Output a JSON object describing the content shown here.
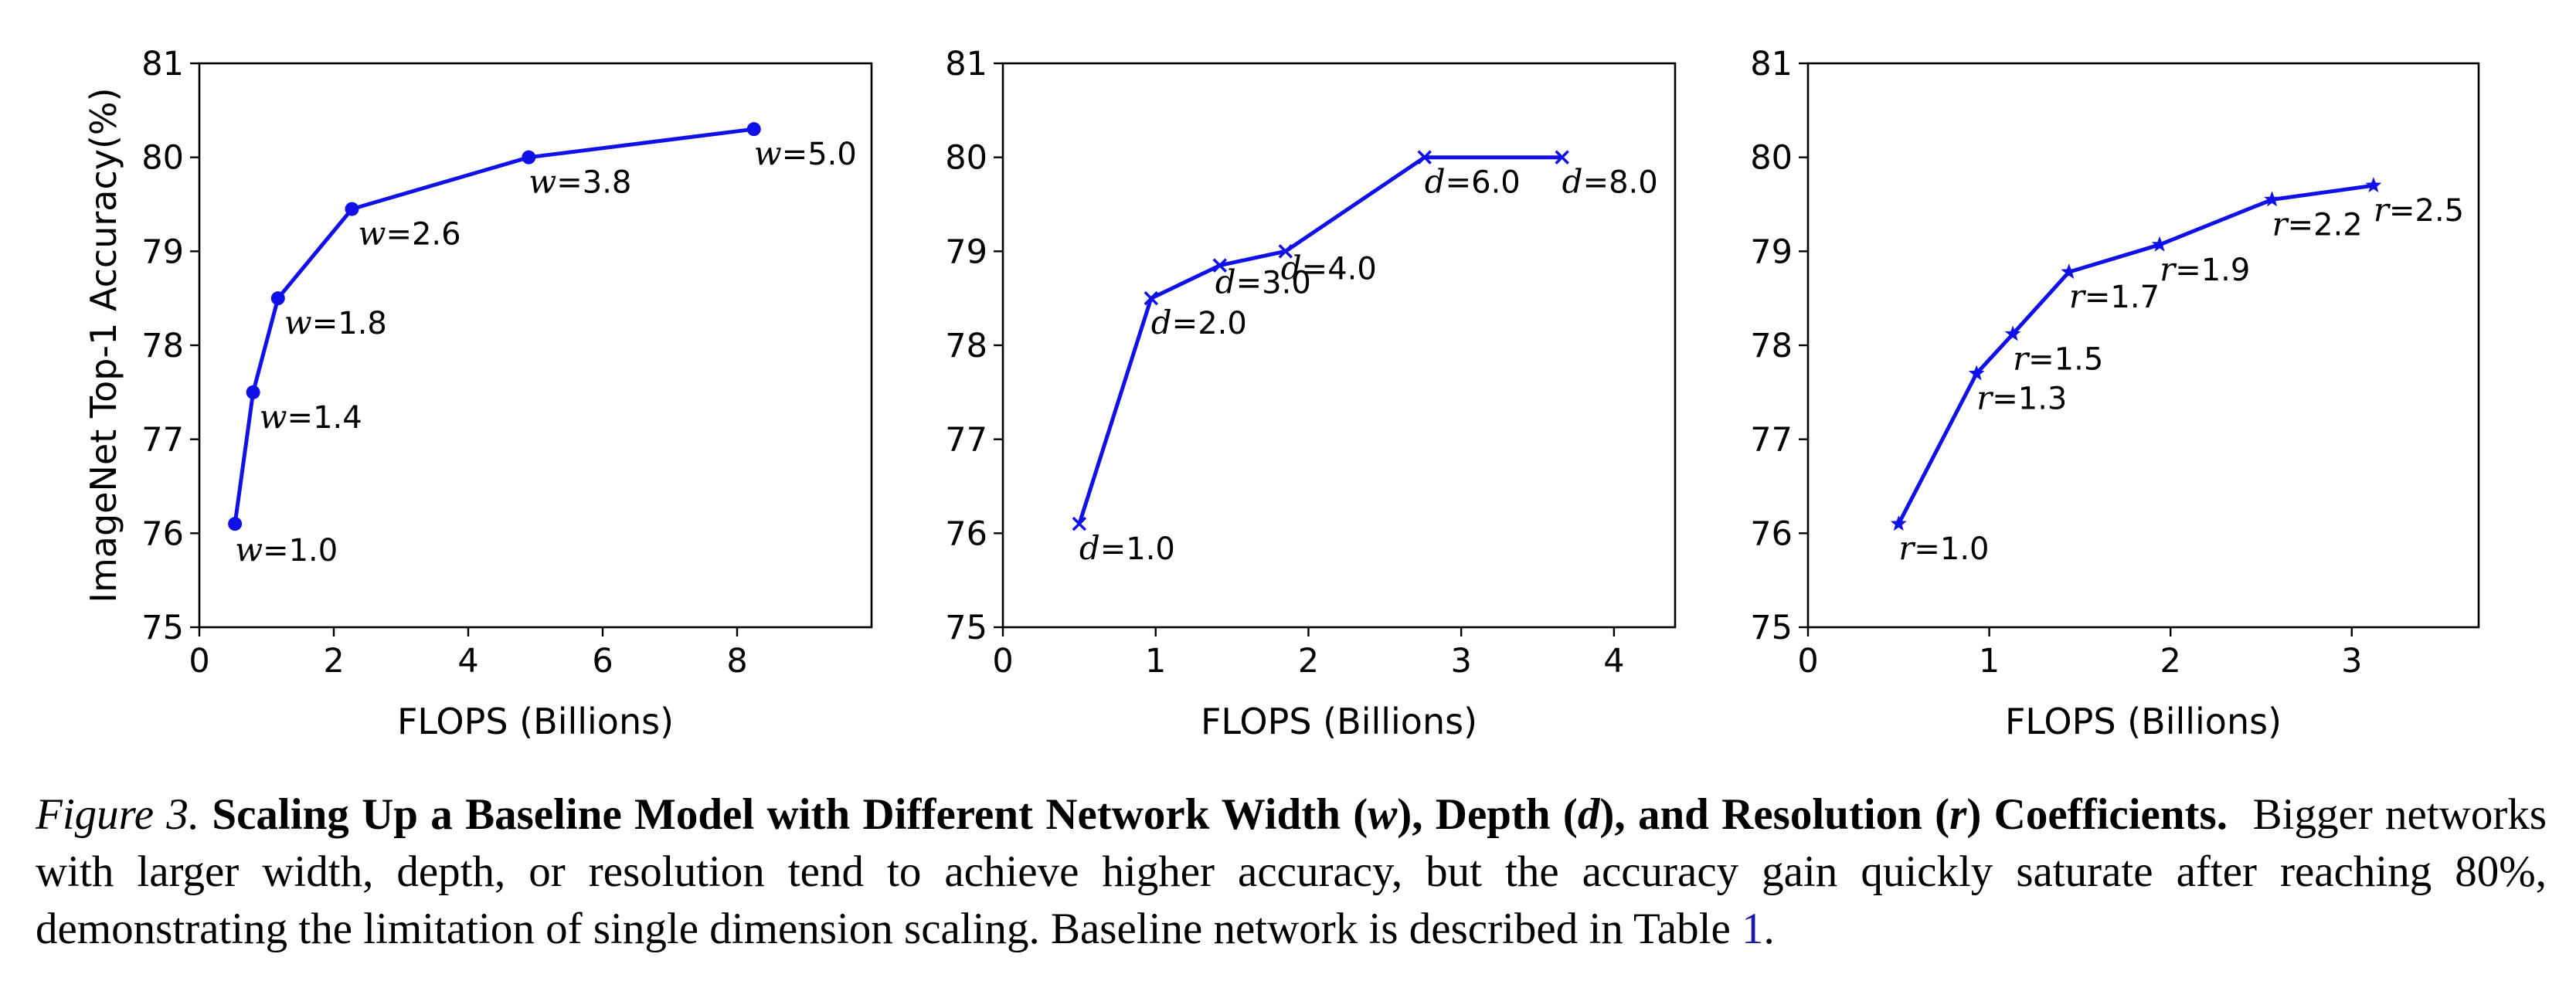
{
  "chart_data": [
    {
      "type": "line",
      "xlabel": "FLOPS (Billions)",
      "ylabel": "ImageNet Top-1 Accuracy(%)",
      "xlim": [
        0,
        10
      ],
      "ylim": [
        75,
        81
      ],
      "xticks": [
        0,
        2,
        4,
        6,
        8
      ],
      "yticks": [
        75,
        76,
        77,
        78,
        79,
        80,
        81
      ],
      "marker": "circle",
      "color": "#1010e8",
      "grid": false,
      "series": [
        {
          "x": [
            0.53,
            0.8,
            1.17,
            2.27,
            4.9,
            8.25
          ],
          "y": [
            76.1,
            77.5,
            78.5,
            79.45,
            80.0,
            80.3
          ],
          "point_labels": [
            {
              "var": "w",
              "text": "=1.0"
            },
            {
              "var": "w",
              "text": "=1.4"
            },
            {
              "var": "w",
              "text": "=1.8"
            },
            {
              "var": "w",
              "text": "=2.6"
            },
            {
              "var": "w",
              "text": "=3.8"
            },
            {
              "var": "w",
              "text": "=5.0"
            }
          ]
        }
      ]
    },
    {
      "type": "line",
      "xlabel": "FLOPS (Billions)",
      "ylabel": "",
      "xlim": [
        0,
        4.4
      ],
      "ylim": [
        75,
        81
      ],
      "xticks": [
        0,
        1,
        2,
        3,
        4
      ],
      "yticks": [
        75,
        76,
        77,
        78,
        79,
        80,
        81
      ],
      "marker": "x",
      "color": "#1010e8",
      "grid": false,
      "series": [
        {
          "x": [
            0.5,
            0.97,
            1.42,
            1.85,
            2.76,
            3.66
          ],
          "y": [
            76.1,
            78.5,
            78.85,
            79.0,
            80.0,
            80.0
          ],
          "point_labels": [
            {
              "var": "d",
              "text": "=1.0"
            },
            {
              "var": "d",
              "text": "=2.0"
            },
            {
              "var": "d",
              "text": "=3.0"
            },
            {
              "var": "d",
              "text": "=4.0"
            },
            {
              "var": "d",
              "text": "=6.0"
            },
            {
              "var": "d",
              "text": "=8.0"
            }
          ]
        }
      ]
    },
    {
      "type": "line",
      "xlabel": "FLOPS (Billions)",
      "ylabel": "",
      "xlim": [
        0,
        3.7
      ],
      "ylim": [
        75,
        81
      ],
      "xticks": [
        0,
        1,
        2,
        3
      ],
      "yticks": [
        75,
        76,
        77,
        78,
        79,
        80,
        81
      ],
      "marker": "star",
      "color": "#1010e8",
      "grid": false,
      "series": [
        {
          "x": [
            0.5,
            0.93,
            1.13,
            1.44,
            1.94,
            2.56,
            3.12
          ],
          "y": [
            76.1,
            77.7,
            78.12,
            78.78,
            79.07,
            79.55,
            79.7
          ],
          "point_labels": [
            {
              "var": "r",
              "text": "=1.0"
            },
            {
              "var": "r",
              "text": "=1.3"
            },
            {
              "var": "r",
              "text": "=1.5"
            },
            {
              "var": "r",
              "text": "=1.7"
            },
            {
              "var": "r",
              "text": "=1.9"
            },
            {
              "var": "r",
              "text": "=2.2"
            },
            {
              "var": "r",
              "text": "=2.5"
            }
          ]
        }
      ]
    }
  ],
  "caption": {
    "label": "Figure 3.",
    "title_a": "Scaling Up a Baseline Model with Different Network Width (",
    "var_w": "w",
    "title_b": "), Depth (",
    "var_d": "d",
    "title_c": "), and Resolution (",
    "var_r": "r",
    "title_d": ") Coefficients.",
    "body": "Bigger networks with larger width, depth, or resolution tend to achieve higher accuracy, but the accuracy gain quickly saturate after reaching 80%, demonstrating the limitation of single dimension scaling. Baseline network is described in Table ",
    "table_ref": "1",
    "end": "."
  }
}
